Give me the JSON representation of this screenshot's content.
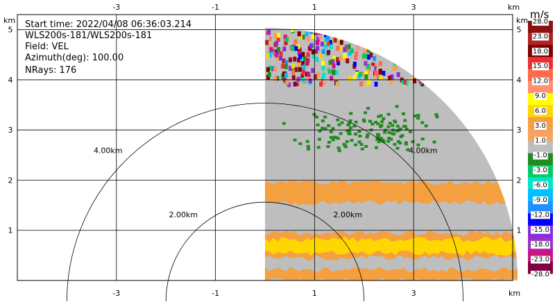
{
  "chart_data": {
    "type": "heatmap",
    "info": [
      "Start time: 2022/04/08 06:36:03.214",
      "WLS200s-181/WLS200s-181",
      "Field: VEL",
      "Azimuth(deg): 100.00",
      "NRays: 176"
    ],
    "unit_corner_label": "km",
    "xlim": [
      -5.0,
      5.0
    ],
    "ylim": [
      0.0,
      5.3
    ],
    "x_ticks": [
      -3,
      -1,
      1,
      3
    ],
    "x_tick_labels": [
      "-3",
      "-1",
      "1",
      "3"
    ],
    "y_ticks": [
      1,
      2,
      3,
      4,
      5
    ],
    "y_tick_labels": [
      "1",
      "2",
      "3",
      "4",
      "5"
    ],
    "grid": true,
    "range_rings": [
      {
        "radius": 2.0,
        "label": "2.00km"
      },
      {
        "radius": 4.0,
        "label": "4.00km"
      }
    ],
    "scan_sector_deg": [
      0,
      90
    ],
    "max_range_km": 5.1,
    "colorbar": {
      "unit": "m/s",
      "levels": [
        28.0,
        23.0,
        18.0,
        15.0,
        12.0,
        9.0,
        6.0,
        3.0,
        1.0,
        -1.0,
        -3.0,
        -6.0,
        -9.0,
        -12.0,
        -15.0,
        -18.0,
        -23.0,
        -28.0
      ],
      "level_labels": [
        "28.0",
        "23.0",
        "18.0",
        "15.0",
        "12.0",
        "9.0",
        "6.0",
        "3.0",
        "1.0",
        "-1.0",
        "-3.0",
        "-6.0",
        "-9.0",
        "-12.0",
        "-15.0",
        "-18.0",
        "-23.0",
        "-28.0"
      ],
      "colors": [
        "#8b1010",
        "#b22222",
        "#7a0000",
        "#e83030",
        "#ff6a4a",
        "#ff9070",
        "#ffff00",
        "#ffd700",
        "#f4a040",
        "#f4a460",
        "#bebebe",
        "#228b22",
        "#00cc66",
        "#00e5cc",
        "#00bfff",
        "#1e90ff",
        "#0000ff",
        "#8a2be2",
        "#9932cc",
        "#c71585",
        "#800040"
      ]
    },
    "bands": [
      {
        "name": "orange low band",
        "color": "#f4a040",
        "y": [
          0.0,
          0.22
        ]
      },
      {
        "name": "orange band",
        "color": "#f4a040",
        "y": [
          0.45,
          0.95
        ]
      },
      {
        "name": "yellow core",
        "color": "#ffd700",
        "y": [
          0.55,
          0.82
        ]
      },
      {
        "name": "orange mid band",
        "color": "#f4a040",
        "y": [
          1.55,
          1.95
        ]
      },
      {
        "name": "green patch",
        "color": "#228b22",
        "y": [
          2.6,
          3.5
        ]
      },
      {
        "name": "noise",
        "y": [
          3.95,
          5.1
        ]
      }
    ]
  }
}
